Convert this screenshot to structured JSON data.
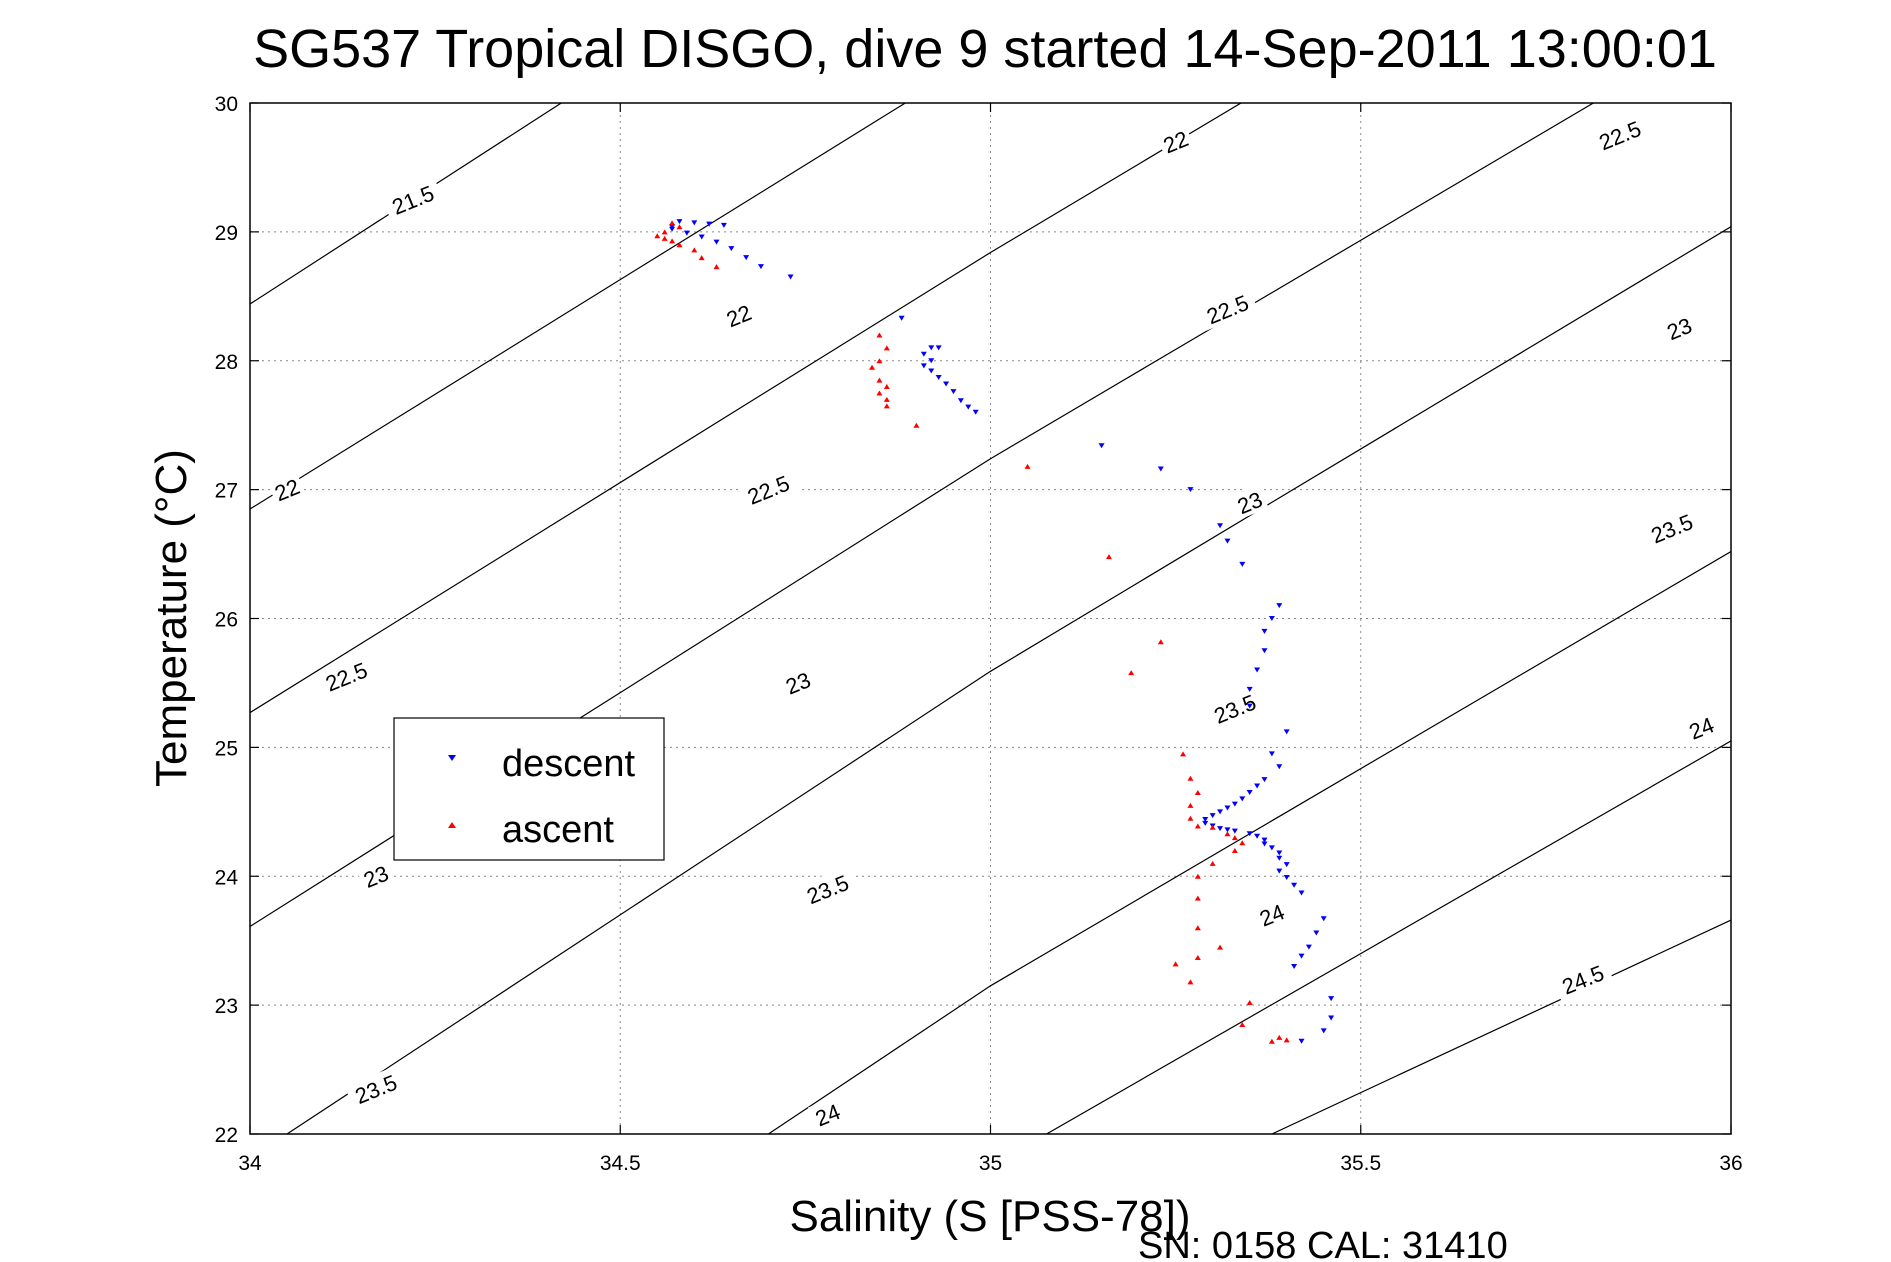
{
  "figure": {
    "footer": "SN: 0158  CAL: 31410"
  },
  "chart_data": {
    "type": "scatter",
    "title": "SG537 Tropical DISGO, dive 9 started 14-Sep-2011 13:00:01",
    "xlabel": "Salinity (S [PSS-78])",
    "ylabel": "Temperature (°C)",
    "xlim": [
      34,
      36
    ],
    "ylim": [
      22,
      30
    ],
    "xticks": [
      "34",
      "34.5",
      "35",
      "35.5",
      "36"
    ],
    "yticks": [
      "22",
      "23",
      "24",
      "25",
      "26",
      "27",
      "28",
      "29",
      "30"
    ],
    "grid": true,
    "grid_style": "dotted",
    "legend_position": "middle-left",
    "density_contours": {
      "levels": [
        21.5,
        22,
        22.5,
        23,
        23.5,
        24,
        24.5
      ],
      "color": "#000000",
      "lines": [
        {
          "points": [
            [
              34.0,
              28.44
            ],
            [
              34.69,
              31.0
            ]
          ]
        },
        {
          "points": [
            [
              34.0,
              26.85
            ],
            [
              35.0,
              30.41
            ],
            [
              35.17,
              31.0
            ]
          ]
        },
        {
          "points": [
            [
              34.0,
              25.27
            ],
            [
              35.0,
              28.84
            ],
            [
              35.63,
              31.0
            ]
          ]
        },
        {
          "points": [
            [
              34.0,
              23.61
            ],
            [
              35.0,
              27.24
            ],
            [
              36.0,
              30.63
            ],
            [
              36.1,
              31.0
            ]
          ]
        },
        {
          "points": [
            [
              34.05,
              22.0
            ],
            [
              35.0,
              25.59
            ],
            [
              36.0,
              29.04
            ]
          ]
        },
        {
          "points": [
            [
              34.7,
              22.0
            ],
            [
              35.0,
              23.15
            ],
            [
              36.0,
              26.52
            ]
          ]
        },
        {
          "points": [
            [
              35.0,
              21.75
            ],
            [
              36.0,
              25.05
            ]
          ]
        },
        {
          "points": [
            [
              35.38,
              22.0
            ],
            [
              36.0,
              23.66
            ]
          ]
        }
      ],
      "labels": [
        {
          "text": "21.5",
          "s": 34.22,
          "t": 29.25
        },
        {
          "text": "22",
          "s": 34.05,
          "t": 27.0
        },
        {
          "text": "22",
          "s": 34.66,
          "t": 28.35
        },
        {
          "text": "22",
          "s": 35.25,
          "t": 29.7
        },
        {
          "text": "22.5",
          "s": 34.13,
          "t": 25.55
        },
        {
          "text": "22.5",
          "s": 34.7,
          "t": 27.0
        },
        {
          "text": "22.5",
          "s": 35.32,
          "t": 28.4
        },
        {
          "text": "22.5",
          "s": 35.85,
          "t": 29.75
        },
        {
          "text": "23",
          "s": 34.17,
          "t": 24.0
        },
        {
          "text": "23",
          "s": 34.74,
          "t": 25.5
        },
        {
          "text": "23",
          "s": 35.35,
          "t": 26.9
        },
        {
          "text": "23",
          "s": 35.93,
          "t": 28.25
        },
        {
          "text": "23.5",
          "s": 34.17,
          "t": 22.35
        },
        {
          "text": "23.5",
          "s": 34.78,
          "t": 23.9
        },
        {
          "text": "23.5",
          "s": 35.33,
          "t": 25.3
        },
        {
          "text": "23.5",
          "s": 35.92,
          "t": 26.7
        },
        {
          "text": "24",
          "s": 34.78,
          "t": 22.15
        },
        {
          "text": "24",
          "s": 35.38,
          "t": 23.7
        },
        {
          "text": "24",
          "s": 35.96,
          "t": 25.15
        },
        {
          "text": "24.5",
          "s": 35.8,
          "t": 23.2
        }
      ]
    },
    "series": [
      {
        "name": "descent",
        "marker": "triangle-down",
        "color": "#0000ff",
        "points": [
          [
            34.58,
            29.08
          ],
          [
            34.6,
            29.07
          ],
          [
            34.62,
            29.06
          ],
          [
            34.64,
            29.05
          ],
          [
            34.57,
            29.04
          ],
          [
            34.57,
            29.02
          ],
          [
            34.59,
            28.99
          ],
          [
            34.61,
            28.96
          ],
          [
            34.63,
            28.92
          ],
          [
            34.65,
            28.87
          ],
          [
            34.67,
            28.8
          ],
          [
            34.69,
            28.73
          ],
          [
            34.73,
            28.65
          ],
          [
            34.88,
            28.33
          ],
          [
            34.92,
            28.1
          ],
          [
            34.93,
            28.1
          ],
          [
            34.91,
            28.05
          ],
          [
            34.92,
            28.0
          ],
          [
            34.91,
            27.96
          ],
          [
            34.92,
            27.92
          ],
          [
            34.93,
            27.87
          ],
          [
            34.94,
            27.82
          ],
          [
            34.95,
            27.76
          ],
          [
            34.96,
            27.69
          ],
          [
            34.97,
            27.64
          ],
          [
            34.98,
            27.6
          ],
          [
            35.15,
            27.34
          ],
          [
            35.23,
            27.16
          ],
          [
            35.27,
            27.0
          ],
          [
            35.31,
            26.72
          ],
          [
            35.32,
            26.6
          ],
          [
            35.34,
            26.42
          ],
          [
            35.39,
            26.1
          ],
          [
            35.38,
            26.0
          ],
          [
            35.37,
            25.9
          ],
          [
            35.37,
            25.75
          ],
          [
            35.36,
            25.6
          ],
          [
            35.35,
            25.45
          ],
          [
            35.35,
            25.32
          ],
          [
            35.4,
            25.12
          ],
          [
            35.38,
            24.95
          ],
          [
            35.39,
            24.85
          ],
          [
            35.37,
            24.75
          ],
          [
            35.36,
            24.7
          ],
          [
            35.35,
            24.65
          ],
          [
            35.34,
            24.6
          ],
          [
            35.33,
            24.56
          ],
          [
            35.32,
            24.53
          ],
          [
            35.31,
            24.5
          ],
          [
            35.3,
            24.47
          ],
          [
            35.29,
            24.44
          ],
          [
            35.29,
            24.41
          ],
          [
            35.3,
            24.39
          ],
          [
            35.31,
            24.37
          ],
          [
            35.32,
            24.36
          ],
          [
            35.33,
            24.35
          ],
          [
            35.35,
            24.33
          ],
          [
            35.36,
            24.31
          ],
          [
            35.37,
            24.28
          ],
          [
            35.37,
            24.25
          ],
          [
            35.38,
            24.22
          ],
          [
            35.39,
            24.18
          ],
          [
            35.39,
            24.14
          ],
          [
            35.4,
            24.09
          ],
          [
            35.39,
            24.04
          ],
          [
            35.4,
            23.99
          ],
          [
            35.41,
            23.93
          ],
          [
            35.42,
            23.87
          ],
          [
            35.45,
            23.67
          ],
          [
            35.44,
            23.56
          ],
          [
            35.43,
            23.45
          ],
          [
            35.42,
            23.38
          ],
          [
            35.41,
            23.3
          ],
          [
            35.46,
            23.05
          ],
          [
            35.46,
            22.9
          ],
          [
            35.45,
            22.8
          ],
          [
            35.42,
            22.72
          ]
        ]
      },
      {
        "name": "ascent",
        "marker": "triangle-up",
        "color": "#ff0000",
        "points": [
          [
            34.57,
            29.07
          ],
          [
            34.58,
            29.04
          ],
          [
            34.56,
            29.0
          ],
          [
            34.55,
            28.97
          ],
          [
            34.56,
            28.95
          ],
          [
            34.57,
            28.93
          ],
          [
            34.58,
            28.9
          ],
          [
            34.6,
            28.86
          ],
          [
            34.61,
            28.8
          ],
          [
            34.63,
            28.73
          ],
          [
            34.85,
            28.2
          ],
          [
            34.86,
            28.1
          ],
          [
            34.85,
            28.0
          ],
          [
            34.84,
            27.95
          ],
          [
            34.85,
            27.85
          ],
          [
            34.86,
            27.8
          ],
          [
            34.85,
            27.75
          ],
          [
            34.86,
            27.7
          ],
          [
            34.86,
            27.65
          ],
          [
            34.9,
            27.5
          ],
          [
            35.05,
            27.18
          ],
          [
            35.16,
            26.48
          ],
          [
            35.23,
            25.82
          ],
          [
            35.19,
            25.58
          ],
          [
            35.26,
            24.95
          ],
          [
            35.27,
            24.76
          ],
          [
            35.28,
            24.65
          ],
          [
            35.27,
            24.55
          ],
          [
            35.27,
            24.45
          ],
          [
            35.28,
            24.39
          ],
          [
            35.3,
            24.38
          ],
          [
            35.32,
            24.33
          ],
          [
            35.33,
            24.3
          ],
          [
            35.34,
            24.26
          ],
          [
            35.33,
            24.2
          ],
          [
            35.3,
            24.1
          ],
          [
            35.28,
            24.0
          ],
          [
            35.28,
            23.83
          ],
          [
            35.28,
            23.6
          ],
          [
            35.31,
            23.45
          ],
          [
            35.28,
            23.37
          ],
          [
            35.25,
            23.32
          ],
          [
            35.27,
            23.18
          ],
          [
            35.35,
            23.02
          ],
          [
            35.34,
            22.85
          ],
          [
            35.38,
            22.72
          ],
          [
            35.39,
            22.75
          ],
          [
            35.4,
            22.73
          ]
        ]
      }
    ]
  }
}
